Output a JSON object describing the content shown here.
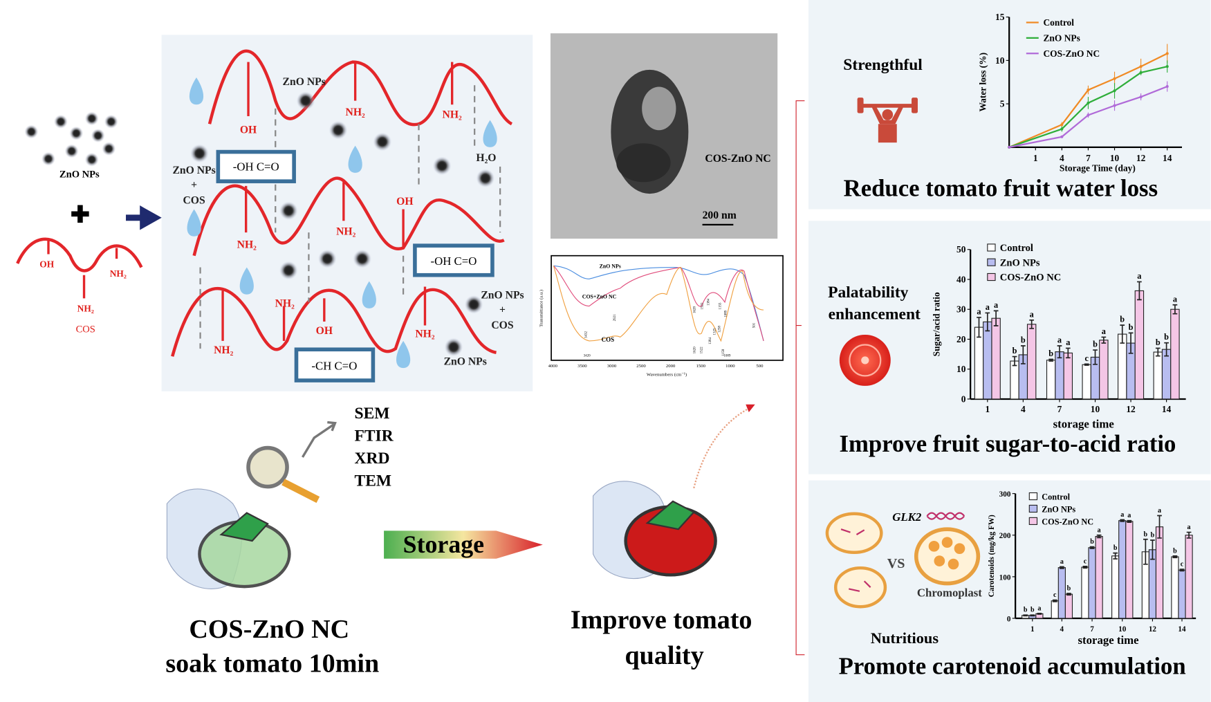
{
  "colors": {
    "red_curve": "#e3262a",
    "panel_bg": "#eef3f8",
    "control": "#f08a24",
    "zno": "#2fae3a",
    "cos_zno": "#b06ad8",
    "bar_control": "#ffffff",
    "bar_zno": "#b8bdf0",
    "bar_cos": "#f4c6e6",
    "arrow_navy": "#1f2a6e"
  },
  "left": {
    "zno_label": "ZnO NPs",
    "cos_oh": "OH",
    "cos_nh2_a": "NH₂",
    "cos_nh2_b": "NH₂",
    "cos_label": "COS"
  },
  "mechanism": {
    "labels": [
      "ZnO NPs",
      "NH₂",
      "NH₂",
      "OH",
      "H₂O",
      "NH₂",
      "NH₂",
      "OH",
      "NH₂",
      "NH₂",
      "OH",
      "NH₂",
      "ZnO NPs"
    ],
    "box1": "-OH C=O",
    "box2": "-OH C=O",
    "box3": "-CH C=O",
    "mix1": [
      "ZnO NPs",
      "+",
      "COS"
    ],
    "mix2": [
      "ZnO NPs",
      "+",
      "COS"
    ]
  },
  "tem": {
    "label": "COS-ZnO NC",
    "scale": "200 nm"
  },
  "ftir": {
    "ylabel": "Transmittance (a.u.)",
    "xlabel": "Wavenumbers (cm⁻¹)",
    "xticks": [
      "4000",
      "3500",
      "3000",
      "2500",
      "2000",
      "1500",
      "1000",
      "500"
    ],
    "series": [
      "ZnO NPs",
      "COS+ZnO NC",
      "COS"
    ],
    "peaks": [
      "3432",
      "2921",
      "3420",
      "1628",
      "1522",
      "1384",
      "1155",
      "1089",
      "1620",
      "1522",
      "1384",
      "1325",
      "1258",
      "1158",
      "1089",
      "501"
    ]
  },
  "methods": [
    "SEM",
    "FTIR",
    "XRD",
    "TEM"
  ],
  "storage_label": "Storage",
  "caption_left": [
    "COS-ZnO NC",
    "soak tomato 10min"
  ],
  "caption_mid": [
    "Improve tomato",
    "quality"
  ],
  "panel1": {
    "side_label": "Strengthful",
    "title": "Reduce tomato fruit water loss"
  },
  "panel2": {
    "side_label": [
      "Palatability",
      "enhancement"
    ],
    "title": "Improve fruit sugar-to-acid ratio"
  },
  "panel3": {
    "gene": "GLK2",
    "vs": "VS",
    "chromoplast": "Chromoplast",
    "side_label": "Nutritious",
    "title": "Promote carotenoid accumulation"
  },
  "chart_data": [
    {
      "type": "line",
      "xlabel": "Storage Time (day)",
      "ylabel": "Water loss (%)",
      "xticks": [
        "1",
        "4",
        "7",
        "10",
        "12",
        "14"
      ],
      "yticks": [
        "5",
        "10",
        "15"
      ],
      "ylim": [
        0,
        15
      ],
      "x": [
        0,
        4,
        7,
        10,
        12,
        14
      ],
      "legend": "top-left",
      "series": [
        {
          "name": "Control",
          "values": [
            0,
            2.6,
            6.6,
            7.9,
            9.3,
            10.8
          ],
          "err": [
            0,
            0.3,
            0.5,
            0.8,
            0.9,
            1.1
          ]
        },
        {
          "name": "ZnO NPs",
          "values": [
            0,
            2.1,
            5.1,
            6.5,
            8.6,
            9.3
          ],
          "err": [
            0,
            0.3,
            0.7,
            0.9,
            0.3,
            0.7
          ]
        },
        {
          "name": "COS-ZnO NC",
          "values": [
            0,
            1.2,
            3.7,
            4.8,
            5.8,
            7.0
          ],
          "err": [
            0,
            0.1,
            0.3,
            0.6,
            0.4,
            0.6
          ]
        }
      ]
    },
    {
      "type": "bar",
      "xlabel": "storage time",
      "ylabel": "Sugar/acid ratio",
      "categories": [
        "1",
        "4",
        "7",
        "10",
        "12",
        "14"
      ],
      "yticks": [
        "0",
        "10",
        "20",
        "30",
        "40",
        "50"
      ],
      "ylim": [
        0,
        50
      ],
      "legend": "top-left",
      "series": [
        {
          "name": "Control",
          "values": [
            24,
            12.7,
            13,
            11.5,
            21.7,
            15.7
          ],
          "err": [
            3.3,
            1.5,
            0.3,
            0.2,
            3,
            1.3
          ],
          "letters": [
            "a",
            "b",
            "b",
            "c",
            "b",
            "b"
          ]
        },
        {
          "name": "ZnO NPs",
          "values": [
            25.8,
            14.8,
            15.8,
            14,
            18.7,
            16.6
          ],
          "err": [
            3,
            3,
            2,
            2.4,
            3.4,
            2.2
          ],
          "letters": [
            "a",
            "b",
            "a",
            "b",
            "b",
            "b"
          ]
        },
        {
          "name": "COS-ZnO NC",
          "values": [
            27,
            25,
            15.4,
            19.7,
            36.2,
            30
          ],
          "err": [
            2.5,
            1.4,
            1.6,
            1,
            3,
            1.5
          ],
          "letters": [
            "a",
            "a",
            "a",
            "a",
            "a",
            "a"
          ]
        }
      ]
    },
    {
      "type": "bar",
      "xlabel": "storage time",
      "ylabel": "Carotenoids (mg/kg FW)",
      "categories": [
        "1",
        "4",
        "7",
        "10",
        "12",
        "14"
      ],
      "yticks": [
        "0",
        "100",
        "200",
        "300"
      ],
      "ylim": [
        0,
        300
      ],
      "legend": "top-left",
      "series": [
        {
          "name": "Control",
          "values": [
            7,
            42,
            123,
            150,
            160,
            148
          ],
          "err": [
            1,
            2,
            2,
            7,
            30,
            2
          ],
          "letters": [
            "b",
            "c",
            "c",
            "b",
            "b",
            "b"
          ]
        },
        {
          "name": "ZnO NPs",
          "values": [
            7,
            122,
            170,
            235,
            165,
            116
          ],
          "err": [
            1,
            2,
            2,
            2,
            23,
            2
          ],
          "letters": [
            "b",
            "a",
            "b",
            "a",
            "b",
            "c"
          ]
        },
        {
          "name": "COS-ZnO NC",
          "values": [
            11,
            58,
            197,
            233,
            220,
            200
          ],
          "err": [
            1,
            2,
            3,
            2,
            27,
            7
          ],
          "letters": [
            "a",
            "b",
            "a",
            "a",
            "a",
            "a"
          ]
        }
      ]
    }
  ]
}
